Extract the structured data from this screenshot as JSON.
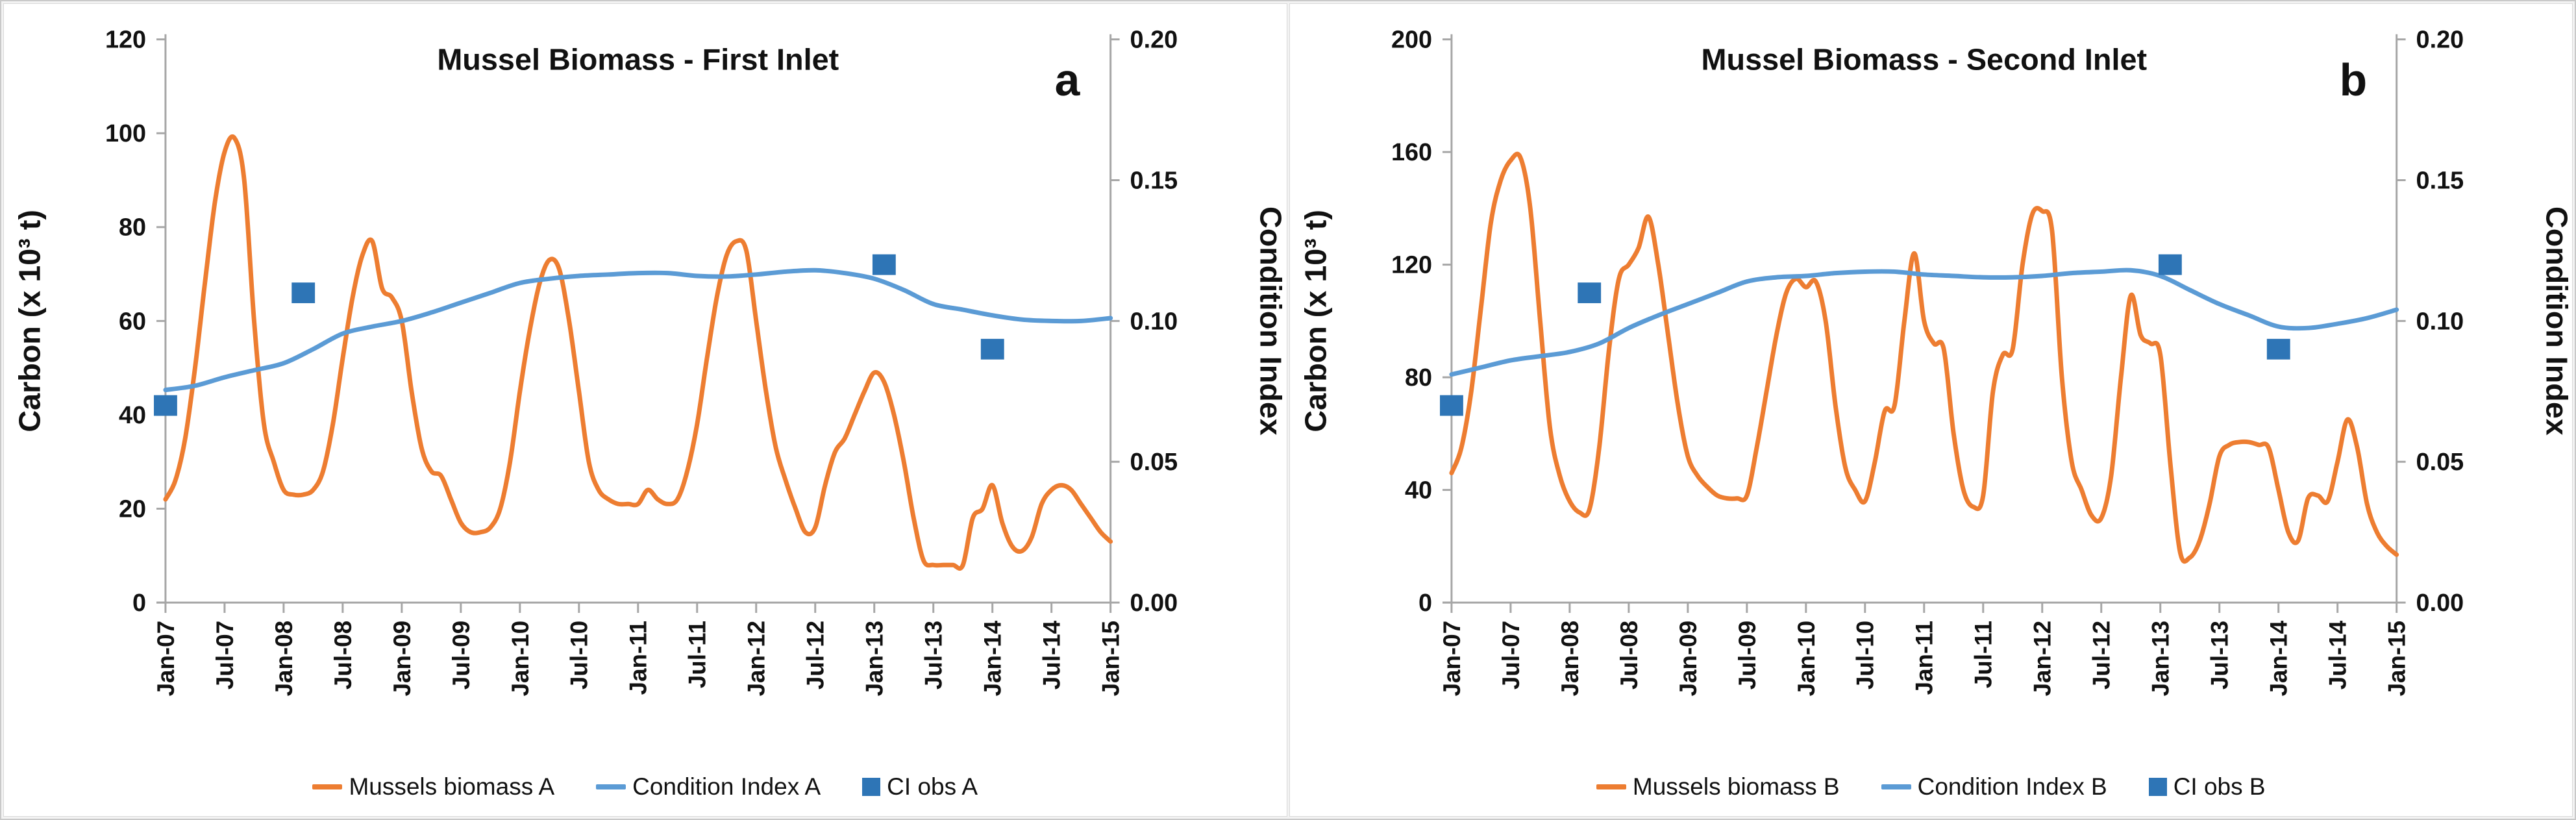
{
  "figure": {
    "colors": {
      "biomass": "#ED7D31",
      "ci_line": "#5B9BD5",
      "ci_obs": "#2E75B6",
      "axis": "#a6a6a6",
      "text": "#111111"
    },
    "x_tick_labels": [
      "Jan-07",
      "Jul-07",
      "Jan-08",
      "Jul-08",
      "Jan-09",
      "Jul-09",
      "Jan-10",
      "Jul-10",
      "Jan-11",
      "Jul-11",
      "Jan-12",
      "Jul-12",
      "Jan-13",
      "Jul-13",
      "Jan-14",
      "Jul-14",
      "Jan-15"
    ],
    "months_span": 96
  },
  "chart_data": [
    {
      "type": "line",
      "title": "Mussel Biomass - First Inlet",
      "panel_label": "a",
      "ylabel_left": "Carbon (x 10³ t)",
      "ylim_left": [
        0,
        120
      ],
      "yticks_left": [
        0,
        20,
        40,
        60,
        80,
        100,
        120
      ],
      "ylabel_right": "Condition Index",
      "ylim_right": [
        0,
        0.2
      ],
      "yticks_right": [
        "0.00",
        "0.05",
        "0.10",
        "0.15",
        "0.20"
      ],
      "x_unit": "months since Jan-2007, ticks every 6 months",
      "legend_position": "bottom",
      "grid": false,
      "series": [
        {
          "name": "Mussels biomass A",
          "kind": "line",
          "axis": "left",
          "color_key": "biomass",
          "x_step_months": 1,
          "values": [
            22,
            26,
            35,
            50,
            68,
            85,
            96,
            99,
            90,
            60,
            38,
            30,
            24,
            23,
            23,
            24,
            28,
            38,
            52,
            65,
            74,
            77,
            67,
            65,
            60,
            45,
            33,
            28,
            27,
            22,
            17,
            15,
            15,
            16,
            20,
            30,
            45,
            58,
            68,
            73,
            71,
            60,
            45,
            30,
            24,
            22,
            21,
            21,
            21,
            24,
            22,
            21,
            22,
            28,
            38,
            52,
            65,
            74,
            77,
            75,
            60,
            45,
            33,
            26,
            20,
            15,
            16,
            25,
            32,
            35,
            40,
            45,
            49,
            47,
            40,
            30,
            18,
            9,
            8,
            8,
            8,
            8,
            18,
            20,
            25,
            17,
            12,
            11,
            14,
            21,
            24,
            25,
            24,
            21,
            18,
            15,
            13
          ]
        },
        {
          "name": "Condition Index  A",
          "kind": "line",
          "axis": "right",
          "color_key": "ci_line",
          "x_step_months": 3,
          "values": [
            0.0755,
            0.077,
            0.08,
            0.0825,
            0.085,
            0.09,
            0.0955,
            0.098,
            0.1,
            0.103,
            0.1065,
            0.11,
            0.1135,
            0.115,
            0.116,
            0.1165,
            0.117,
            0.117,
            0.116,
            0.1158,
            0.1165,
            0.1175,
            0.118,
            0.117,
            0.115,
            0.111,
            0.106,
            0.104,
            0.102,
            0.1005,
            0.1,
            0.1,
            0.101
          ]
        },
        {
          "name": "CI obs A",
          "kind": "scatter_square",
          "axis": "right",
          "color_key": "ci_obs",
          "points": [
            [
              0,
              0.07
            ],
            [
              14,
              0.11
            ],
            [
              73,
              0.12
            ],
            [
              84,
              0.09
            ]
          ]
        }
      ]
    },
    {
      "type": "line",
      "title": "Mussel Biomass - Second Inlet",
      "panel_label": "b",
      "ylabel_left": "Carbon (x 10³ t)",
      "ylim_left": [
        0,
        200
      ],
      "yticks_left": [
        0,
        40,
        80,
        120,
        160,
        200
      ],
      "ylabel_right": "Condition Index",
      "ylim_right": [
        0,
        0.2
      ],
      "yticks_right": [
        "0.00",
        "0.05",
        "0.10",
        "0.15",
        "0.20"
      ],
      "x_unit": "months since Jan-2007, ticks every 6 months",
      "legend_position": "bottom",
      "grid": false,
      "series": [
        {
          "name": "Mussels biomass B",
          "kind": "line",
          "axis": "left",
          "color_key": "biomass",
          "x_step_months": 1,
          "values": [
            46,
            55,
            75,
            105,
            135,
            150,
            157,
            158,
            140,
            100,
            62,
            45,
            36,
            32,
            33,
            55,
            90,
            115,
            120,
            126,
            137,
            120,
            95,
            70,
            52,
            45,
            41,
            38,
            37,
            37,
            38,
            55,
            75,
            95,
            110,
            115,
            112,
            114,
            100,
            70,
            48,
            40,
            36,
            50,
            68,
            70,
            100,
            124,
            100,
            92,
            90,
            60,
            40,
            34,
            38,
            75,
            88,
            90,
            120,
            138,
            139,
            132,
            80,
            50,
            40,
            31,
            30,
            45,
            80,
            109,
            95,
            92,
            88,
            50,
            18,
            16,
            22,
            35,
            52,
            56,
            57,
            57,
            56,
            55,
            40,
            25,
            22,
            37,
            38,
            36,
            50,
            65,
            55,
            35,
            25,
            20,
            17
          ]
        },
        {
          "name": "Condition Index  B",
          "kind": "line",
          "axis": "right",
          "color_key": "ci_line",
          "x_step_months": 3,
          "values": [
            0.081,
            0.0835,
            0.086,
            0.0875,
            0.089,
            0.092,
            0.0975,
            0.102,
            0.106,
            0.11,
            0.114,
            0.1155,
            0.116,
            0.117,
            0.1175,
            0.1175,
            0.1165,
            0.116,
            0.1155,
            0.1155,
            0.116,
            0.117,
            0.1175,
            0.118,
            0.116,
            0.111,
            0.106,
            0.102,
            0.098,
            0.0975,
            0.099,
            0.101,
            0.104
          ]
        },
        {
          "name": "CI obs B",
          "kind": "scatter_square",
          "axis": "right",
          "color_key": "ci_obs",
          "points": [
            [
              0,
              0.07
            ],
            [
              14,
              0.11
            ],
            [
              73,
              0.12
            ],
            [
              84,
              0.09
            ]
          ]
        }
      ]
    }
  ]
}
